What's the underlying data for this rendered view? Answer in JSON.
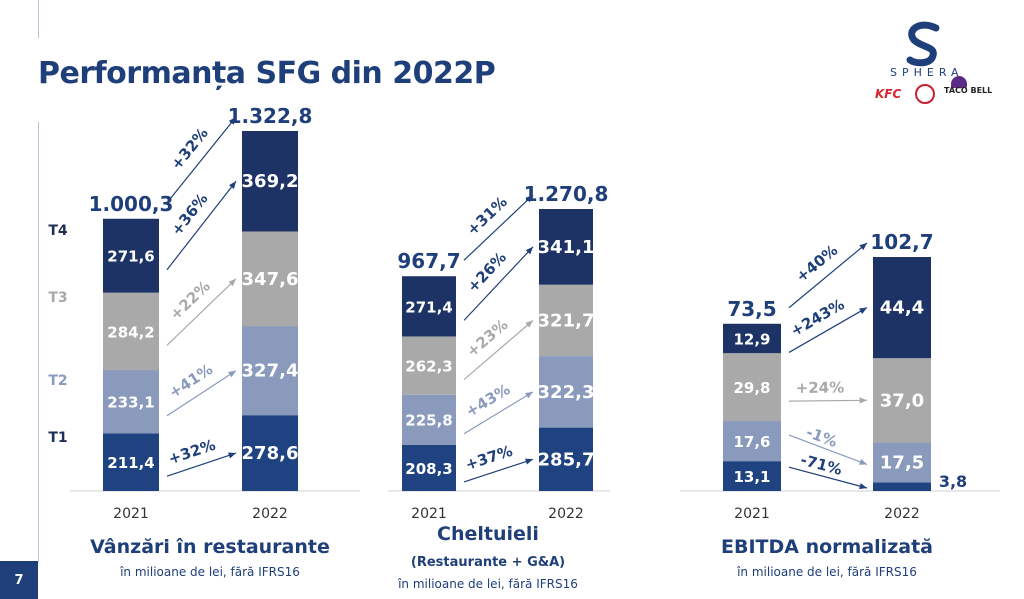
{
  "page": {
    "title": "Performanța SFG din 2022P",
    "page_number": "7"
  },
  "logo": {
    "name": "SPHERA",
    "brands": [
      "KFC",
      "TACO BELL"
    ]
  },
  "colors": {
    "T1": "#1f4381",
    "T2": "#8a9abd",
    "T3": "#a9a9a9",
    "T4": "#1d3366",
    "title": "#1f3f7a",
    "arrow_dark": "#1f3f7a",
    "arrow_light": "#a9a9a9",
    "arrow_mid": "#8a9abd"
  },
  "chart_data": [
    {
      "type": "bar",
      "title": "Vânzări în restaurante",
      "subtitle": "",
      "note": "în milioane de lei, fără IFRS16",
      "categories": [
        "2021",
        "2022"
      ],
      "series": [
        {
          "name": "T1",
          "values": [
            211.4,
            278.6
          ],
          "labels": [
            "211,4",
            "278,6"
          ]
        },
        {
          "name": "T2",
          "values": [
            233.1,
            327.4
          ],
          "labels": [
            "233,1",
            "327,4"
          ]
        },
        {
          "name": "T3",
          "values": [
            284.2,
            347.6
          ],
          "labels": [
            "284,2",
            "347,6"
          ]
        },
        {
          "name": "T4",
          "values": [
            271.6,
            369.2
          ],
          "labels": [
            "271,6",
            "369,2"
          ]
        }
      ],
      "totals": [
        "1.000,3",
        "1.322,8"
      ],
      "total_values": [
        1000.3,
        1322.8
      ],
      "growth": {
        "T1": "+32%",
        "T2": "+41%",
        "T3": "+22%",
        "T4": "+36%",
        "total": "+32%"
      },
      "stacked": true
    },
    {
      "type": "bar",
      "title": "Cheltuieli",
      "subtitle": "(Restaurante + G&A)",
      "note": "în milioane de lei, fără IFRS16",
      "categories": [
        "2021",
        "2022"
      ],
      "series": [
        {
          "name": "T1",
          "values": [
            208.3,
            285.7
          ],
          "labels": [
            "208,3",
            "285,7"
          ]
        },
        {
          "name": "T2",
          "values": [
            225.8,
            322.3
          ],
          "labels": [
            "225,8",
            "322,3"
          ]
        },
        {
          "name": "T3",
          "values": [
            262.3,
            321.7
          ],
          "labels": [
            "262,3",
            "321,7"
          ]
        },
        {
          "name": "T4",
          "values": [
            271.4,
            341.1
          ],
          "labels": [
            "271,4",
            "341,1"
          ]
        }
      ],
      "totals": [
        "967,7",
        "1.270,8"
      ],
      "total_values": [
        967.7,
        1270.8
      ],
      "growth": {
        "T1": "+37%",
        "T2": "+43%",
        "T3": "+23%",
        "T4": "+26%",
        "total": "+31%"
      },
      "stacked": true
    },
    {
      "type": "bar",
      "title": "EBITDA normalizată",
      "subtitle": "",
      "note": "în milioane de lei, fără IFRS16",
      "categories": [
        "2021",
        "2022"
      ],
      "series": [
        {
          "name": "T1",
          "values": [
            13.1,
            3.8
          ],
          "labels": [
            "13,1",
            "3,8"
          ]
        },
        {
          "name": "T2",
          "values": [
            17.6,
            17.5
          ],
          "labels": [
            "17,6",
            "17,5"
          ]
        },
        {
          "name": "T3",
          "values": [
            29.8,
            37.0
          ],
          "labels": [
            "29,8",
            "37,0"
          ]
        },
        {
          "name": "T4",
          "values": [
            12.9,
            44.4
          ],
          "labels": [
            "12,9",
            "44,4"
          ]
        }
      ],
      "totals": [
        "73,5",
        "102,7"
      ],
      "total_values": [
        73.5,
        102.7
      ],
      "growth": {
        "T1": "-71%",
        "T2": "-1%",
        "T3": "+24%",
        "T4": "+243%",
        "total": "+40%"
      },
      "stacked": true
    }
  ],
  "quarter_labels": [
    "T4",
    "T3",
    "T2",
    "T1"
  ]
}
